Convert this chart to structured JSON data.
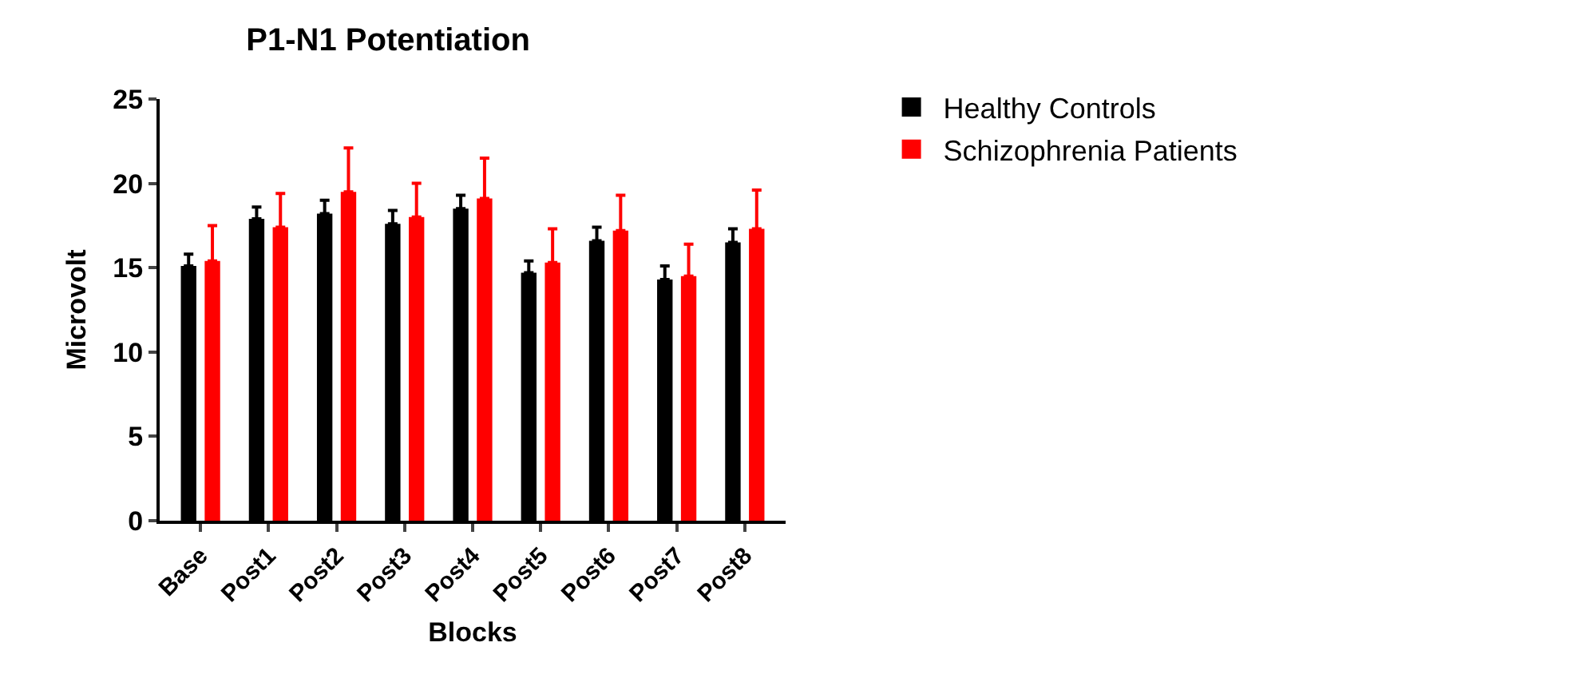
{
  "chart_data": {
    "type": "bar",
    "title": "P1-N1 Potentiation",
    "xlabel": "Blocks",
    "ylabel": "Microvolt",
    "categories": [
      "Base",
      "Post1",
      "Post2",
      "Post3",
      "Post4",
      "Post5",
      "Post6",
      "Post7",
      "Post8"
    ],
    "series": [
      {
        "name": "Healthy Controls",
        "color": "#000000",
        "values": [
          15.1,
          17.9,
          18.2,
          17.6,
          18.5,
          14.7,
          16.6,
          14.3,
          16.5
        ],
        "errors": [
          [
            15.1,
            15.8
          ],
          [
            17.9,
            18.6
          ],
          [
            18.2,
            19.0
          ],
          [
            17.6,
            18.4
          ],
          [
            18.5,
            19.3
          ],
          [
            14.7,
            15.4
          ],
          [
            16.6,
            17.4
          ],
          [
            14.3,
            15.1
          ],
          [
            16.5,
            17.3
          ]
        ]
      },
      {
        "name": "Schizophrenia Patients",
        "color": "#ff0000",
        "values": [
          15.4,
          17.4,
          19.5,
          18.0,
          19.1,
          15.3,
          17.2,
          14.5,
          17.3
        ],
        "errors": [
          [
            15.4,
            17.5
          ],
          [
            17.4,
            19.4
          ],
          [
            19.5,
            22.1
          ],
          [
            18.0,
            20.0
          ],
          [
            19.1,
            21.5
          ],
          [
            15.3,
            17.3
          ],
          [
            17.2,
            19.3
          ],
          [
            14.5,
            16.4
          ],
          [
            17.3,
            19.6
          ]
        ]
      }
    ],
    "ylim": [
      0,
      25
    ],
    "yticks": [
      0,
      5,
      10,
      15,
      20,
      25
    ],
    "grid": false,
    "legend": "top right"
  }
}
